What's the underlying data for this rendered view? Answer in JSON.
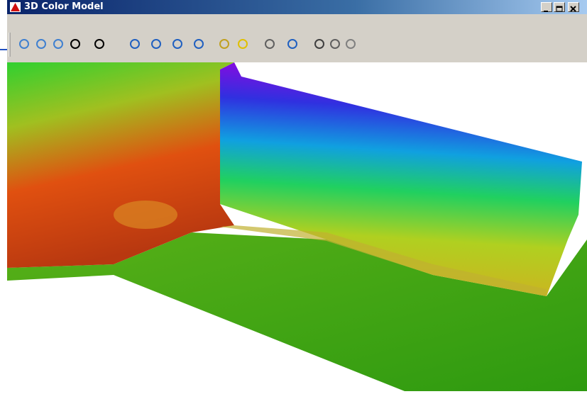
{
  "window": {
    "title": "3D Color Model"
  }
}
